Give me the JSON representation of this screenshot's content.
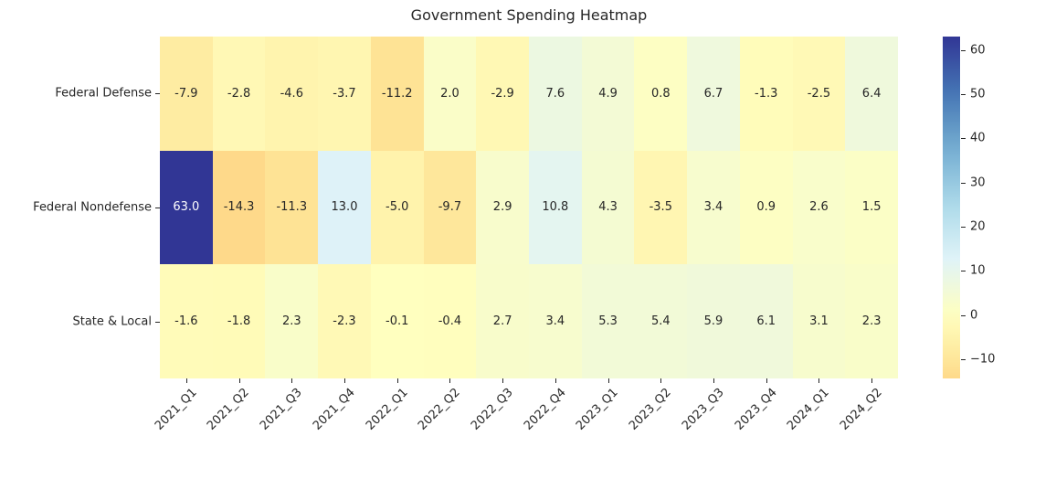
{
  "title": "Government Spending Heatmap",
  "colors": {
    "background": "#ffffff",
    "annotation_dark": "#262626",
    "annotation_light": "#ffffff",
    "tick_color": "#262626"
  },
  "chart_data": {
    "type": "heatmap",
    "title": "Government Spending Heatmap",
    "rows": [
      "Federal Defense",
      "Federal Nondefense",
      "State & Local"
    ],
    "columns": [
      "2021_Q1",
      "2021_Q2",
      "2021_Q3",
      "2021_Q4",
      "2022_Q1",
      "2022_Q2",
      "2022_Q3",
      "2022_Q4",
      "2023_Q1",
      "2023_Q2",
      "2023_Q3",
      "2023_Q4",
      "2024_Q1",
      "2024_Q2"
    ],
    "values": [
      [
        -7.9,
        -2.8,
        -4.6,
        -3.7,
        -11.2,
        2.0,
        -2.9,
        7.6,
        4.9,
        0.8,
        6.7,
        -1.3,
        -2.5,
        6.4
      ],
      [
        63.0,
        -14.3,
        -11.3,
        13.0,
        -5.0,
        -9.7,
        2.9,
        10.8,
        4.3,
        -3.5,
        3.4,
        0.9,
        2.6,
        1.5
      ],
      [
        -1.6,
        -1.8,
        2.3,
        -2.3,
        -0.1,
        -0.4,
        2.7,
        3.4,
        5.3,
        5.4,
        5.9,
        6.1,
        3.1,
        2.3
      ]
    ],
    "annotated": true,
    "value_decimals": 1,
    "colormap": "RdYlBu",
    "colormap_anchors": [
      "#a50026",
      "#d73027",
      "#f46d43",
      "#fdae61",
      "#fee090",
      "#ffffbf",
      "#e0f3f8",
      "#abd9e9",
      "#74add1",
      "#4575b4",
      "#313695"
    ],
    "center": 0,
    "vmin": -14.3,
    "vmax": 63.0,
    "x_tick_rotation": 45,
    "grid": false,
    "colorbar": {
      "position": "right",
      "ticks": [
        60,
        50,
        40,
        30,
        20,
        10,
        0,
        -10
      ]
    }
  }
}
